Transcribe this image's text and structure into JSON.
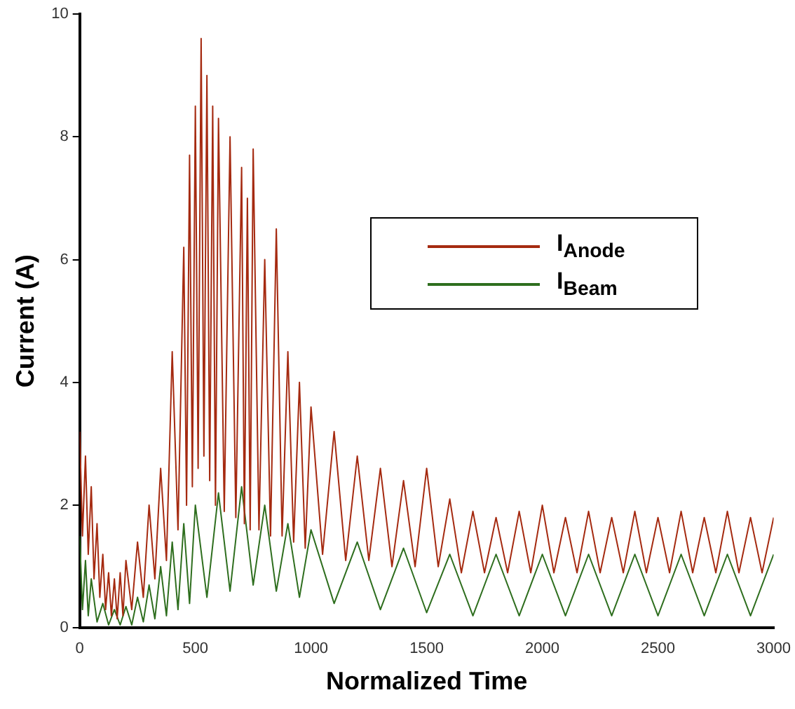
{
  "chart_data": {
    "type": "line",
    "xlabel": "Normalized Time",
    "ylabel": "Current (A)",
    "xlim": [
      0,
      3000
    ],
    "xticks": [
      0,
      500,
      1000,
      1500,
      2000,
      2500,
      3000
    ],
    "ylim": [
      0,
      10
    ],
    "yticks": [
      0,
      2,
      4,
      6,
      8,
      10
    ],
    "grid": false,
    "legend": "top right",
    "marker": "none",
    "line_style": "solid",
    "series": [
      {
        "name": "I$_{Anode}$",
        "color": "#a52a10",
        "x": [
          0,
          12,
          25,
          37,
          50,
          62,
          75,
          87,
          100,
          112,
          125,
          137,
          150,
          162,
          175,
          187,
          200,
          225,
          250,
          275,
          300,
          325,
          350,
          375,
          400,
          425,
          450,
          462,
          475,
          487,
          500,
          512,
          525,
          537,
          550,
          562,
          575,
          587,
          600,
          625,
          650,
          675,
          700,
          712,
          725,
          737,
          750,
          775,
          800,
          825,
          850,
          875,
          900,
          925,
          950,
          975,
          1000,
          1050,
          1100,
          1150,
          1200,
          1250,
          1300,
          1350,
          1400,
          1450,
          1500,
          1550,
          1600,
          1650,
          1700,
          1750,
          1800,
          1850,
          1900,
          1950,
          2000,
          2050,
          2100,
          2150,
          2200,
          2250,
          2300,
          2350,
          2400,
          2450,
          2500,
          2550,
          2600,
          2650,
          2700,
          2750,
          2800,
          2850,
          2900,
          2950,
          3000
        ],
        "values": [
          3.2,
          1.5,
          2.8,
          1.2,
          2.3,
          0.8,
          1.7,
          0.5,
          1.2,
          0.3,
          0.9,
          0.2,
          0.8,
          0.15,
          0.9,
          0.2,
          1.1,
          0.3,
          1.4,
          0.5,
          2.0,
          0.8,
          2.6,
          1.1,
          4.5,
          1.6,
          6.2,
          2.0,
          7.7,
          2.3,
          8.5,
          2.6,
          9.6,
          2.8,
          9.0,
          2.4,
          8.5,
          2.0,
          8.3,
          1.9,
          8.0,
          1.8,
          7.5,
          1.7,
          7.0,
          1.6,
          7.8,
          1.6,
          6.0,
          1.5,
          6.5,
          1.5,
          4.5,
          1.4,
          4.0,
          1.3,
          3.6,
          1.2,
          3.2,
          1.1,
          2.8,
          1.1,
          2.6,
          1.0,
          2.4,
          1.0,
          2.6,
          1.0,
          2.1,
          0.9,
          1.9,
          0.9,
          1.8,
          0.9,
          1.9,
          0.9,
          2.0,
          0.9,
          1.8,
          0.9,
          1.9,
          0.9,
          1.8,
          0.9,
          1.9,
          0.9,
          1.8,
          0.9,
          1.9,
          0.9,
          1.8,
          0.9,
          1.9,
          0.9,
          1.8,
          0.9,
          1.8
        ]
      },
      {
        "name": "I$_{Beam}$",
        "color": "#2e6e1e",
        "x": [
          0,
          12,
          25,
          37,
          50,
          75,
          100,
          125,
          150,
          175,
          200,
          225,
          250,
          275,
          300,
          325,
          350,
          375,
          400,
          425,
          450,
          475,
          500,
          550,
          600,
          650,
          700,
          750,
          800,
          850,
          900,
          950,
          1000,
          1100,
          1200,
          1300,
          1400,
          1500,
          1600,
          1700,
          1800,
          1900,
          2000,
          2100,
          2200,
          2300,
          2400,
          2500,
          2600,
          2700,
          2800,
          2900,
          3000
        ],
        "values": [
          1.5,
          0.3,
          1.1,
          0.2,
          0.8,
          0.1,
          0.4,
          0.05,
          0.3,
          0.05,
          0.35,
          0.05,
          0.5,
          0.1,
          0.7,
          0.15,
          1.0,
          0.2,
          1.4,
          0.3,
          1.7,
          0.4,
          2.0,
          0.5,
          2.2,
          0.6,
          2.3,
          0.7,
          2.0,
          0.6,
          1.7,
          0.5,
          1.6,
          0.4,
          1.4,
          0.3,
          1.3,
          0.25,
          1.2,
          0.2,
          1.2,
          0.2,
          1.2,
          0.2,
          1.2,
          0.2,
          1.2,
          0.2,
          1.2,
          0.2,
          1.2,
          0.2,
          1.2
        ]
      }
    ]
  }
}
